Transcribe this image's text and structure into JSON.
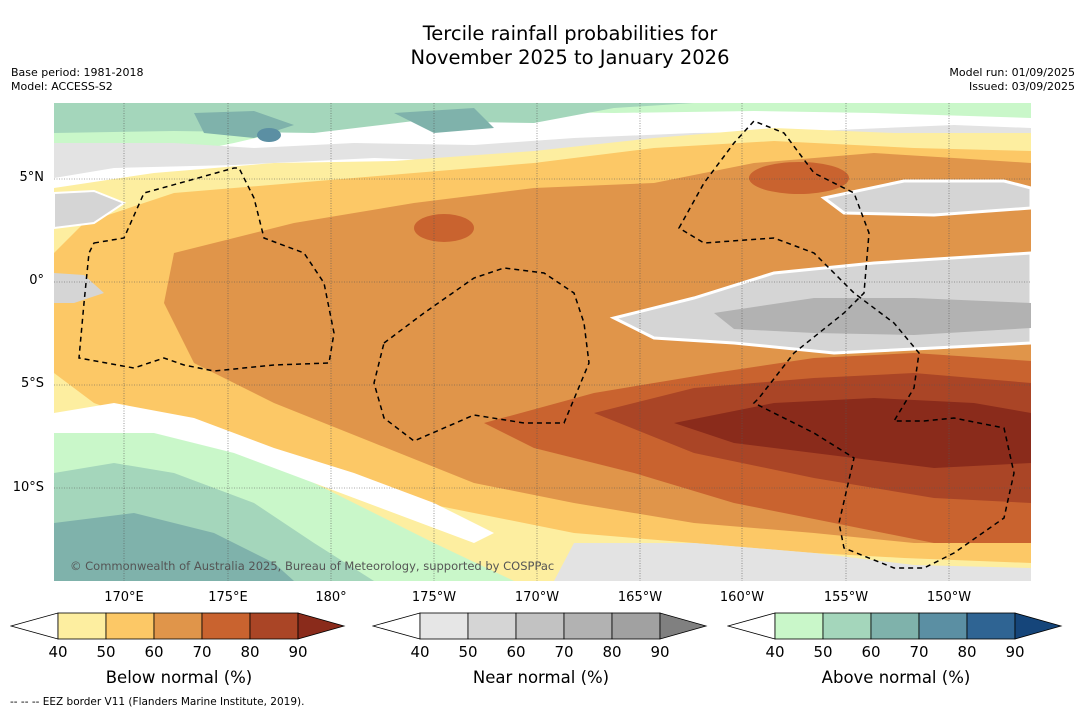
{
  "title_line1": "Tercile rainfall probabilities for",
  "title_line2": "November 2025 to January 2026",
  "meta_left": [
    "Base period: 1981-2018",
    "Model: ACCESS-S2"
  ],
  "meta_right": [
    "Model run: 01/09/2025",
    "Issued: 03/09/2025"
  ],
  "lat_labels": [
    "5°N",
    "0°",
    "5°S",
    "10°S"
  ],
  "lon_labels": [
    "170°E",
    "175°E",
    "180°",
    "175°W",
    "170°W",
    "165°W",
    "160°W",
    "155°W",
    "150°W"
  ],
  "copyright": "© Commonwealth of Australia 2025, Bureau of Meteorology, supported by COSPPac",
  "footnote": "-- -- -- EEZ border V11 (Flanders Marine Institute, 2019).",
  "colorbars": [
    {
      "label": "Below normal (%)",
      "ticks": [
        "40",
        "50",
        "60",
        "70",
        "80",
        "90"
      ],
      "colors": [
        "#ffffff",
        "#fdeea0",
        "#fcc866",
        "#e0954a",
        "#c9632f",
        "#aa4526",
        "#8a2b1b"
      ]
    },
    {
      "label": "Near normal (%)",
      "ticks": [
        "40",
        "50",
        "60",
        "70",
        "80",
        "90"
      ],
      "colors": [
        "#ffffff",
        "#e6e6e6",
        "#d5d5d5",
        "#c2c2c2",
        "#b2b2b2",
        "#a1a1a1",
        "#808080"
      ]
    },
    {
      "label": "Above normal (%)",
      "ticks": [
        "40",
        "50",
        "60",
        "70",
        "80",
        "90"
      ],
      "colors": [
        "#ffffff",
        "#c9f7c9",
        "#a4d6bb",
        "#7fb2ab",
        "#5b8fa3",
        "#2f6493",
        "#15457a"
      ]
    }
  ]
}
